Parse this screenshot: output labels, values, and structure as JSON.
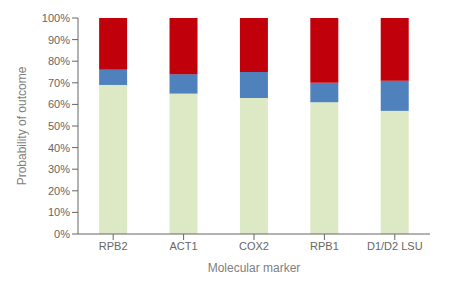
{
  "chart_data": {
    "type": "bar",
    "stacked": true,
    "grid": false,
    "xlabel": "Molecular marker",
    "ylabel": "Probability of outcome",
    "categories": [
      "RPB2",
      "ACT1",
      "COX2",
      "RPB1",
      "D1/D2 LSU"
    ],
    "series": [
      {
        "color": "#dce9c4",
        "values": [
          0.69,
          0.65,
          0.63,
          0.61,
          0.57
        ]
      },
      {
        "color": "#4f81bd",
        "values": [
          0.07,
          0.09,
          0.12,
          0.09,
          0.14
        ]
      },
      {
        "color": "#c0000b",
        "values": [
          0.24,
          0.26,
          0.25,
          0.3,
          0.29
        ]
      }
    ],
    "ylim": [
      0,
      1.0
    ],
    "yticks": [
      {
        "value": 0.0,
        "label": "0%"
      },
      {
        "value": 0.1,
        "label": "10%"
      },
      {
        "value": 0.2,
        "label": "20%"
      },
      {
        "value": 0.3,
        "label": "30%"
      },
      {
        "value": 0.4,
        "label": "40%"
      },
      {
        "value": 0.5,
        "label": "50%"
      },
      {
        "value": 0.6,
        "label": "60%"
      },
      {
        "value": 0.7,
        "label": "70%"
      },
      {
        "value": 0.8,
        "label": "80%"
      },
      {
        "value": 0.9,
        "label": "90%"
      },
      {
        "value": 1.0,
        "label": "100%"
      }
    ]
  }
}
